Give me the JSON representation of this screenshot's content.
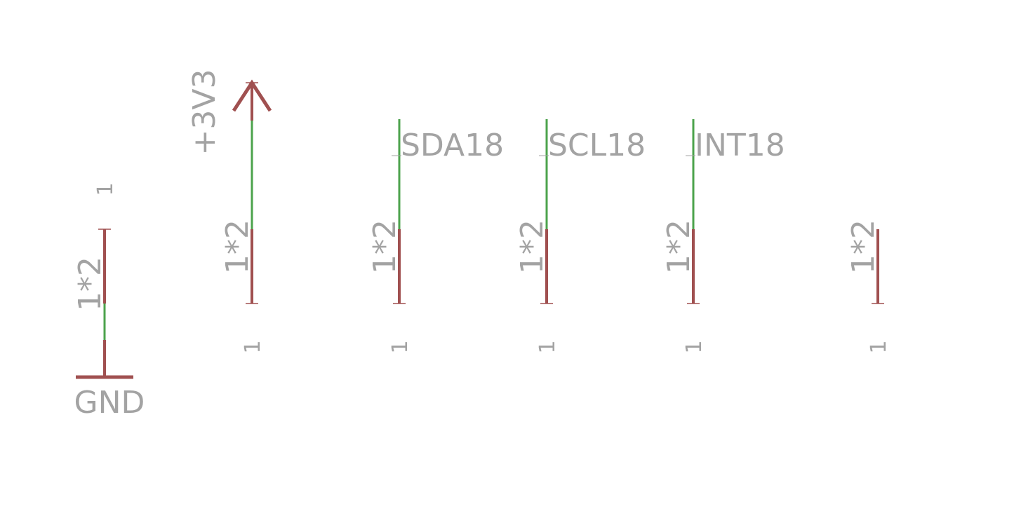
{
  "colors": {
    "background": "#ffffff",
    "pin": "#a05050",
    "net": "#4ca34c",
    "text": "#a3a3a3"
  },
  "power": {
    "gnd_label": "GND",
    "vcc_label": "+3V3"
  },
  "nets": {
    "sda": "SDA18",
    "scl": "SCL18",
    "int": "INT18"
  },
  "parts": [
    {
      "name": "1*2",
      "pin": "1"
    },
    {
      "name": "1*2",
      "pin": "1"
    },
    {
      "name": "1*2",
      "pin": "1"
    },
    {
      "name": "1*2",
      "pin": "1"
    },
    {
      "name": "1*2",
      "pin": "1"
    },
    {
      "name": "1*2",
      "pin": "1"
    }
  ]
}
